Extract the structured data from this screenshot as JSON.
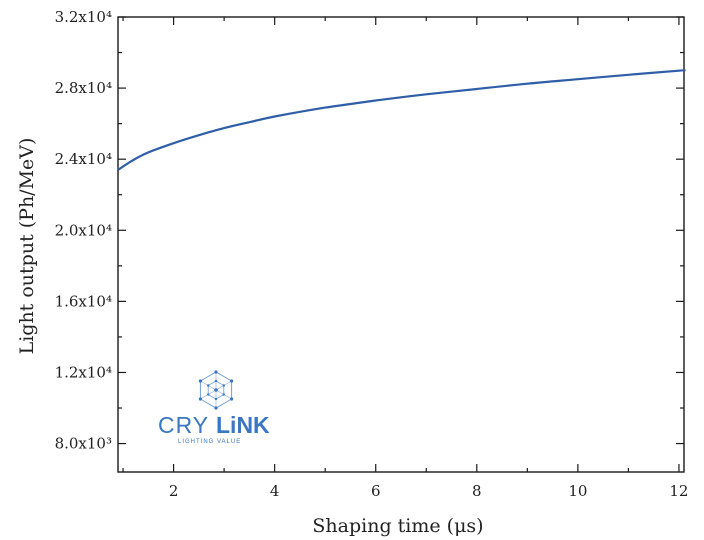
{
  "chart_data": {
    "type": "line",
    "xlabel": "Shaping time (μs)",
    "ylabel": "Light output (Ph/MeV)",
    "xlim": [
      0.9,
      12.1
    ],
    "ylim": [
      6400,
      32000
    ],
    "x_ticks": [
      2,
      4,
      6,
      8,
      10,
      12
    ],
    "x_tick_labels": [
      "2",
      "4",
      "6",
      "8",
      "10",
      "12"
    ],
    "y_ticks": [
      8000,
      12000,
      16000,
      20000,
      24000,
      28000,
      32000
    ],
    "y_tick_labels": [
      "8.0x10³",
      "1.2x10⁴",
      "1.6x10⁴",
      "2.0x10⁴",
      "2.4x10⁴",
      "2.8x10⁴",
      "3.2x10⁴"
    ],
    "grid": false,
    "series": [
      {
        "color": "#2f5ea8",
        "x": [
          0.9,
          1.2,
          1.5,
          2.0,
          2.5,
          3.0,
          3.5,
          4.0,
          5.0,
          6.0,
          7.0,
          8.0,
          9.0,
          10.0,
          11.0,
          12.0,
          12.1
        ],
        "y": [
          23400,
          23950,
          24380,
          24900,
          25350,
          25750,
          26080,
          26400,
          26900,
          27300,
          27650,
          27950,
          28250,
          28500,
          28750,
          28980,
          29000
        ]
      }
    ]
  },
  "watermark": {
    "brand_part1": "CRY",
    "brand_part2": "LiNK",
    "tagline": "LIGHTING VALUE",
    "color": "#3a76c2"
  }
}
